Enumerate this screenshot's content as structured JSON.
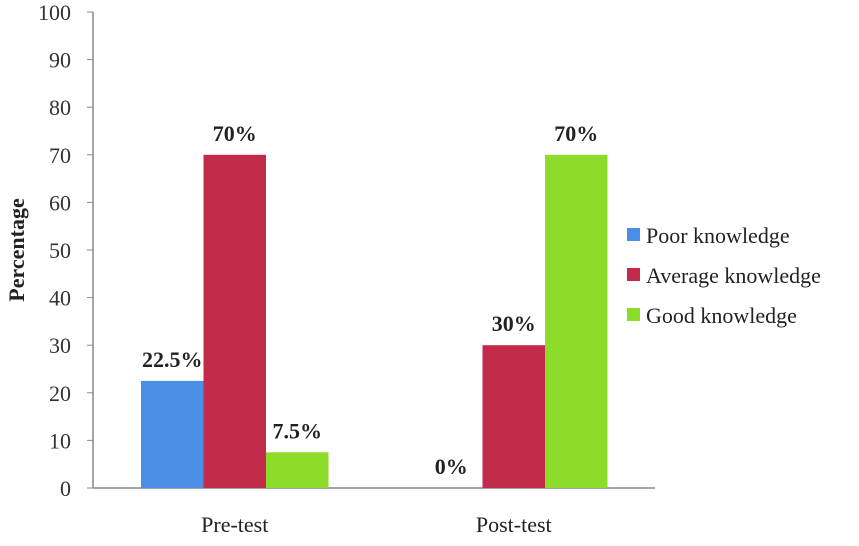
{
  "chart_data": {
    "type": "bar",
    "title": "",
    "xlabel": "",
    "ylabel": "Percentage",
    "ylim": [
      0,
      100
    ],
    "yticks": [
      0,
      10,
      20,
      30,
      40,
      50,
      60,
      70,
      80,
      90,
      100
    ],
    "categories": [
      "Pre-test",
      "Post-test"
    ],
    "series": [
      {
        "name": "Poor knowledge",
        "values": [
          22.5,
          0
        ],
        "labels": [
          "22.5%",
          "0%"
        ],
        "color": "#4a8ee6"
      },
      {
        "name": "Average knowledge",
        "values": [
          70,
          30
        ],
        "labels": [
          "70%",
          "30%"
        ],
        "color": "#c32b4b"
      },
      {
        "name": "Good knowledge",
        "values": [
          7.5,
          70
        ],
        "labels": [
          "7.5%",
          "70%"
        ],
        "color": "#8edc2a"
      }
    ],
    "grid": false,
    "legend_position": "right"
  }
}
